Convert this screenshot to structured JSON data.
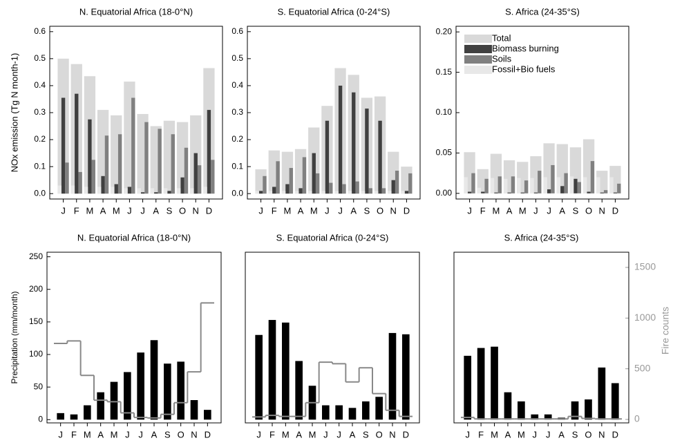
{
  "chart_data": [
    {
      "type": "bar",
      "title": "N. Equatorial Africa (18-0°N)",
      "ylabel": "NOx emission (Tg N month-1)",
      "categories": [
        "J",
        "F",
        "M",
        "A",
        "M",
        "J",
        "J",
        "A",
        "S",
        "O",
        "N",
        "D"
      ],
      "ylim": [
        -0.02,
        0.62
      ],
      "yticks": [
        {
          "value": 0,
          "label": "0.0"
        },
        0.1,
        0.2,
        0.3,
        0.4,
        0.5,
        0.6
      ],
      "series": [
        {
          "name": "Total",
          "color": "#d9d9d9",
          "values": [
            0.5,
            0.48,
            0.435,
            0.31,
            0.29,
            0.415,
            0.295,
            0.25,
            0.27,
            0.265,
            0.29,
            0.465
          ]
        },
        {
          "name": "Biomass burning",
          "color": "#404040",
          "values": [
            0.355,
            0.37,
            0.275,
            0.065,
            0.035,
            0.025,
            0.005,
            0.005,
            0.01,
            0.06,
            0.15,
            0.31
          ]
        },
        {
          "name": "Soils",
          "color": "#808080",
          "values": [
            0.115,
            0.08,
            0.125,
            0.215,
            0.22,
            0.355,
            0.265,
            0.24,
            0.22,
            0.17,
            0.105,
            0.125
          ]
        },
        {
          "name": "Fossil+Bio fuels",
          "color": "#e8e8e8",
          "values": [
            0.03,
            0.03,
            0.025,
            0.025,
            0.025,
            0.02,
            0.02,
            0.02,
            0.02,
            0.02,
            0.02,
            0.025
          ]
        }
      ]
    },
    {
      "type": "bar",
      "title": "S. Equatorial Africa (0-24°S)",
      "categories": [
        "J",
        "F",
        "M",
        "A",
        "M",
        "J",
        "J",
        "A",
        "S",
        "O",
        "N",
        "D"
      ],
      "ylim": [
        -0.02,
        0.62
      ],
      "yticks": [
        {
          "value": 0,
          "label": "0.0"
        },
        0.1,
        0.2,
        0.3,
        0.4,
        0.5,
        0.6
      ],
      "series": [
        {
          "name": "Total",
          "color": "#d9d9d9",
          "values": [
            0.09,
            0.16,
            0.155,
            0.165,
            0.245,
            0.325,
            0.465,
            0.44,
            0.355,
            0.36,
            0.155,
            0.1
          ]
        },
        {
          "name": "Biomass burning",
          "color": "#404040",
          "values": [
            0.01,
            0.025,
            0.035,
            0.02,
            0.15,
            0.27,
            0.4,
            0.375,
            0.315,
            0.27,
            0.05,
            0.01
          ]
        },
        {
          "name": "Soils",
          "color": "#808080",
          "values": [
            0.065,
            0.12,
            0.095,
            0.135,
            0.075,
            0.04,
            0.035,
            0.045,
            0.02,
            0.02,
            0.085,
            0.075
          ]
        },
        {
          "name": "Fossil+Bio fuels",
          "color": "#e8e8e8",
          "values": [
            0.01,
            0.01,
            0.01,
            0.01,
            0.01,
            0.01,
            0.01,
            0.01,
            0.01,
            0.01,
            0.01,
            0.01
          ]
        }
      ]
    },
    {
      "type": "bar",
      "title": "S. Africa (24-35°S)",
      "legend": "upper left",
      "categories": [
        "J",
        "F",
        "M",
        "A",
        "M",
        "J",
        "J",
        "A",
        "S",
        "O",
        "N",
        "D"
      ],
      "ylim": [
        -0.007,
        0.207
      ],
      "yticks": [
        {
          "value": 0,
          "label": "0.00"
        },
        0.05,
        {
          "value": 0.1,
          "label": "0.10"
        },
        0.15,
        {
          "value": 0.2,
          "label": "0.20"
        }
      ],
      "series": [
        {
          "name": "Total",
          "color": "#d9d9d9",
          "values": [
            0.051,
            0.03,
            0.049,
            0.041,
            0.039,
            0.046,
            0.062,
            0.061,
            0.057,
            0.067,
            0.028,
            0.034
          ]
        },
        {
          "name": "Biomass burning",
          "color": "#404040",
          "values": [
            0.002,
            0.002,
            0.001,
            0.001,
            0.001,
            0.001,
            0.005,
            0.009,
            0.018,
            0.002,
            0.001,
            0.001
          ]
        },
        {
          "name": "Soils",
          "color": "#808080",
          "values": [
            0.025,
            0.018,
            0.021,
            0.021,
            0.016,
            0.028,
            0.035,
            0.025,
            0.014,
            0.04,
            0.004,
            0.012
          ]
        },
        {
          "name": "Fossil+Bio fuels",
          "color": "#e8e8e8",
          "values": [
            0.02,
            0.007,
            0.019,
            0.018,
            0.019,
            0.019,
            0.02,
            0.02,
            0.021,
            0.02,
            0.02,
            0.02
          ]
        }
      ]
    },
    {
      "type": "bar_step",
      "title": "N. Equatorial Africa (18-0°N)",
      "ylabel": "Precipitation (mm/month)",
      "categories": [
        "J",
        "F",
        "M",
        "A",
        "M",
        "J",
        "J",
        "A",
        "S",
        "O",
        "N",
        "D"
      ],
      "ylim": [
        -5,
        257
      ],
      "yticks": [
        0,
        50,
        100,
        150,
        200,
        250
      ],
      "y2lim": [
        -34,
        1650
      ],
      "series": [
        {
          "color": "#000000",
          "values": [
            10,
            8,
            22,
            42,
            58,
            73,
            103,
            122,
            86,
            89,
            30,
            15
          ]
        },
        {
          "color": "#888888",
          "axis": "y2",
          "values": [
            750,
            775,
            435,
            190,
            175,
            65,
            20,
            15,
            50,
            165,
            470,
            1150
          ]
        }
      ]
    },
    {
      "type": "bar_step",
      "title": "S. Equatorial Africa (0-24°S)",
      "categories": [
        "J",
        "F",
        "M",
        "A",
        "M",
        "J",
        "J",
        "A",
        "S",
        "O",
        "N",
        "D"
      ],
      "ylim": [
        -5,
        257
      ],
      "y2lim": [
        -34,
        1650
      ],
      "series": [
        {
          "color": "#000000",
          "values": [
            130,
            153,
            149,
            90,
            52,
            22,
            22,
            18,
            28,
            35,
            133,
            131
          ]
        },
        {
          "color": "#888888",
          "axis": "y2",
          "values": [
            25,
            40,
            30,
            30,
            165,
            565,
            550,
            370,
            510,
            255,
            90,
            30
          ]
        }
      ]
    },
    {
      "type": "bar_step",
      "title": "S. Africa (24-35°S)",
      "y2label": "Fire counts",
      "categories": [
        "J",
        "F",
        "M",
        "A",
        "M",
        "J",
        "J",
        "A",
        "S",
        "O",
        "N",
        "D"
      ],
      "ylim": [
        -5,
        257
      ],
      "y2lim": [
        -34,
        1650
      ],
      "y2ticks": [
        0,
        500,
        1000,
        1500
      ],
      "series": [
        {
          "color": "#000000",
          "values": [
            98,
            110,
            112,
            42,
            28,
            8,
            8,
            3,
            28,
            31,
            80,
            56
          ]
        },
        {
          "color": "#888888",
          "axis": "y2",
          "values": [
            20,
            5,
            5,
            5,
            5,
            5,
            5,
            5,
            30,
            10,
            5,
            5
          ]
        }
      ]
    }
  ]
}
